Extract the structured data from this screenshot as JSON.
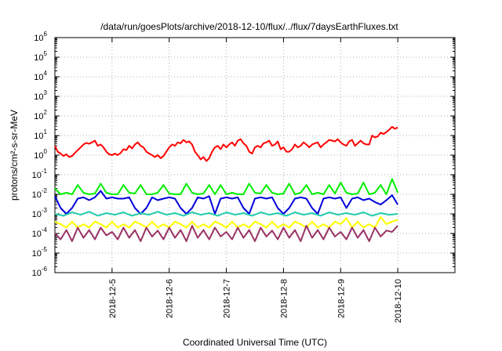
{
  "chart_data": {
    "type": "line",
    "title": "/data/run/goesPlots/archive/2018-12-10/flux/../flux/7daysEarthFluxes.txt",
    "xlabel": "Coordinated Universal Time (UTC)",
    "ylabel": "protons/cm²-s-sr-MeV",
    "y_scale": "log",
    "ylim_exponents": [
      -6,
      6
    ],
    "y_ticks": [
      {
        "base": "10",
        "exp": "-6"
      },
      {
        "base": "10",
        "exp": "-5"
      },
      {
        "base": "10",
        "exp": "-4"
      },
      {
        "base": "10",
        "exp": "-3"
      },
      {
        "base": "10",
        "exp": "-2"
      },
      {
        "base": "10",
        "exp": "-1"
      },
      {
        "base": "10",
        "exp": "0"
      },
      {
        "base": "10",
        "exp": "1"
      },
      {
        "base": "10",
        "exp": "2"
      },
      {
        "base": "10",
        "exp": "3"
      },
      {
        "base": "10",
        "exp": "4"
      },
      {
        "base": "10",
        "exp": "5"
      },
      {
        "base": "10",
        "exp": "6"
      }
    ],
    "x_range_days": [
      "2018-12-04",
      "2018-12-11"
    ],
    "x_ticks": [
      "2018-12-5",
      "2018-12-6",
      "2018-12-7",
      "2018-12-8",
      "2018-12-9",
      "2018-12-10"
    ],
    "grid": true,
    "legend": "none",
    "series": [
      {
        "color": "#ff0000",
        "x_days": [
          0.0,
          0.05,
          0.1,
          0.15,
          0.2,
          0.25,
          0.3,
          0.35,
          0.4,
          0.45,
          0.5,
          0.55,
          0.6,
          0.65,
          0.7,
          0.75,
          0.8,
          0.85,
          0.9,
          0.95,
          1.0,
          1.05,
          1.1,
          1.15,
          1.2,
          1.25,
          1.3,
          1.35,
          1.4,
          1.45,
          1.5,
          1.55,
          1.6,
          1.65,
          1.7,
          1.75,
          1.8,
          1.85,
          1.9,
          1.95,
          2.0,
          2.05,
          2.1,
          2.15,
          2.2,
          2.25,
          2.3,
          2.35,
          2.4,
          2.45,
          2.5,
          2.55,
          2.6,
          2.65,
          2.7,
          2.75,
          2.8,
          2.85,
          2.9,
          2.95,
          3.0,
          3.05,
          3.1,
          3.15,
          3.2,
          3.25,
          3.3,
          3.35,
          3.4,
          3.45,
          3.5,
          3.55,
          3.6,
          3.65,
          3.7,
          3.75,
          3.8,
          3.85,
          3.9,
          3.95,
          4.0,
          4.05,
          4.1,
          4.15,
          4.2,
          4.25,
          4.3,
          4.35,
          4.4,
          4.45,
          4.5,
          4.55,
          4.6,
          4.65,
          4.7,
          4.75,
          4.8,
          4.85,
          4.9,
          4.95,
          5.0,
          5.05,
          5.1,
          5.15,
          5.2,
          5.25,
          5.3,
          5.35,
          5.4,
          5.45,
          5.5,
          5.55,
          5.6,
          5.65,
          5.7,
          5.75,
          5.8,
          5.85,
          5.9,
          5.95,
          6.0
        ],
        "y": [
          3.0,
          1.5,
          1.2,
          0.9,
          1.1,
          0.8,
          0.9,
          1.3,
          1.8,
          2.5,
          3.5,
          4.2,
          3.8,
          4.5,
          5.5,
          3.0,
          3.5,
          2.5,
          1.5,
          1.1,
          1.0,
          1.2,
          1.0,
          1.3,
          2.0,
          1.8,
          3.0,
          2.2,
          3.5,
          4.5,
          3.0,
          2.5,
          1.5,
          1.2,
          1.0,
          0.8,
          1.0,
          0.7,
          0.9,
          1.5,
          2.5,
          3.5,
          3.0,
          4.5,
          4.0,
          6.0,
          4.5,
          5.0,
          3.5,
          1.5,
          1.0,
          0.6,
          0.8,
          0.5,
          0.7,
          1.5,
          2.5,
          3.0,
          2.0,
          3.5,
          2.5,
          3.5,
          4.5,
          3.0,
          5.5,
          6.5,
          4.0,
          3.0,
          1.5,
          1.2,
          2.5,
          3.0,
          2.5,
          4.0,
          4.5,
          5.5,
          3.0,
          3.5,
          5.0,
          2.0,
          2.5,
          1.5,
          1.5,
          2.0,
          3.5,
          2.5,
          3.0,
          4.5,
          3.5,
          2.5,
          3.5,
          4.0,
          4.5,
          2.5,
          3.5,
          4.5,
          6.0,
          5.5,
          5.0,
          6.5,
          4.5,
          3.5,
          3.0,
          5.0,
          6.0,
          3.0,
          4.0,
          5.5,
          4.0,
          3.5,
          3.5,
          10.0,
          8.0,
          9.0,
          14.0,
          12.0,
          15.0,
          20.0,
          28.0,
          22.0,
          26.0
        ]
      },
      {
        "color": "#00ee00",
        "x_days": [
          0.0,
          0.1,
          0.2,
          0.3,
          0.4,
          0.5,
          0.6,
          0.7,
          0.8,
          0.9,
          1.0,
          1.1,
          1.2,
          1.3,
          1.4,
          1.5,
          1.6,
          1.7,
          1.8,
          1.9,
          2.0,
          2.1,
          2.2,
          2.3,
          2.4,
          2.5,
          2.6,
          2.7,
          2.8,
          2.9,
          3.0,
          3.1,
          3.2,
          3.3,
          3.4,
          3.5,
          3.6,
          3.7,
          3.8,
          3.9,
          4.0,
          4.1,
          4.2,
          4.3,
          4.4,
          4.5,
          4.6,
          4.7,
          4.8,
          4.9,
          5.0,
          5.1,
          5.2,
          5.3,
          5.4,
          5.5,
          5.6,
          5.7,
          5.8,
          5.9,
          6.0
        ],
        "y": [
          0.02,
          0.01,
          0.012,
          0.01,
          0.03,
          0.012,
          0.01,
          0.011,
          0.035,
          0.012,
          0.01,
          0.01,
          0.03,
          0.012,
          0.011,
          0.03,
          0.01,
          0.01,
          0.012,
          0.03,
          0.011,
          0.01,
          0.01,
          0.035,
          0.012,
          0.01,
          0.011,
          0.03,
          0.01,
          0.03,
          0.01,
          0.012,
          0.01,
          0.01,
          0.035,
          0.012,
          0.011,
          0.03,
          0.012,
          0.01,
          0.011,
          0.035,
          0.01,
          0.012,
          0.03,
          0.01,
          0.012,
          0.01,
          0.03,
          0.011,
          0.04,
          0.012,
          0.01,
          0.011,
          0.04,
          0.01,
          0.012,
          0.03,
          0.01,
          0.06,
          0.012
        ]
      },
      {
        "color": "#0000dd",
        "x_days": [
          0.0,
          0.1,
          0.2,
          0.3,
          0.4,
          0.5,
          0.6,
          0.7,
          0.8,
          0.9,
          1.0,
          1.1,
          1.2,
          1.3,
          1.4,
          1.5,
          1.6,
          1.7,
          1.8,
          1.9,
          2.0,
          2.1,
          2.2,
          2.3,
          2.4,
          2.5,
          2.6,
          2.7,
          2.8,
          2.9,
          3.0,
          3.1,
          3.2,
          3.3,
          3.4,
          3.5,
          3.6,
          3.7,
          3.8,
          3.9,
          4.0,
          4.1,
          4.2,
          4.3,
          4.4,
          4.5,
          4.6,
          4.7,
          4.8,
          4.9,
          5.0,
          5.1,
          5.2,
          5.3,
          5.4,
          5.5,
          5.6,
          5.7,
          5.8,
          5.9,
          6.0
        ],
        "y": [
          0.008,
          0.002,
          0.001,
          0.002,
          0.006,
          0.007,
          0.005,
          0.007,
          0.015,
          0.006,
          0.007,
          0.006,
          0.006,
          0.007,
          0.002,
          0.001,
          0.002,
          0.007,
          0.005,
          0.006,
          0.007,
          0.006,
          0.002,
          0.001,
          0.002,
          0.007,
          0.006,
          0.008,
          0.001,
          0.006,
          0.007,
          0.006,
          0.007,
          0.002,
          0.001,
          0.006,
          0.007,
          0.006,
          0.007,
          0.002,
          0.001,
          0.002,
          0.006,
          0.007,
          0.006,
          0.002,
          0.001,
          0.006,
          0.007,
          0.006,
          0.007,
          0.002,
          0.006,
          0.007,
          0.005,
          0.006,
          0.004,
          0.003,
          0.005,
          0.009,
          0.003
        ]
      },
      {
        "color": "#22ccaa",
        "x_days": [
          0.0,
          0.15,
          0.3,
          0.45,
          0.6,
          0.75,
          0.9,
          1.05,
          1.2,
          1.35,
          1.5,
          1.65,
          1.8,
          1.95,
          2.1,
          2.25,
          2.4,
          2.55,
          2.7,
          2.85,
          3.0,
          3.15,
          3.3,
          3.45,
          3.6,
          3.75,
          3.9,
          4.05,
          4.2,
          4.35,
          4.5,
          4.65,
          4.8,
          4.95,
          5.1,
          5.25,
          5.4,
          5.55,
          5.7,
          5.85,
          6.0
        ],
        "y": [
          0.001,
          0.0008,
          0.0012,
          0.0009,
          0.0013,
          0.0008,
          0.0011,
          0.0009,
          0.0012,
          0.0008,
          0.0011,
          0.0009,
          0.0013,
          0.0009,
          0.0011,
          0.0008,
          0.0012,
          0.0009,
          0.0011,
          0.0008,
          0.0012,
          0.0009,
          0.0011,
          0.0008,
          0.0012,
          0.0009,
          0.0011,
          0.0008,
          0.0012,
          0.0009,
          0.0011,
          0.0008,
          0.0012,
          0.0009,
          0.0011,
          0.0009,
          0.0012,
          0.0008,
          0.0011,
          0.0009,
          0.001
        ]
      },
      {
        "color": "#ffff00",
        "x_days": [
          0.0,
          0.1,
          0.2,
          0.3,
          0.4,
          0.5,
          0.6,
          0.7,
          0.8,
          0.9,
          1.0,
          1.1,
          1.2,
          1.3,
          1.4,
          1.5,
          1.6,
          1.7,
          1.8,
          1.9,
          2.0,
          2.1,
          2.2,
          2.3,
          2.4,
          2.5,
          2.6,
          2.7,
          2.8,
          2.9,
          3.0,
          3.1,
          3.2,
          3.3,
          3.4,
          3.5,
          3.6,
          3.7,
          3.8,
          3.9,
          4.0,
          4.1,
          4.2,
          4.3,
          4.4,
          4.5,
          4.6,
          4.7,
          4.8,
          4.9,
          5.0,
          5.1,
          5.2,
          5.3,
          5.4,
          5.5,
          5.6,
          5.7,
          5.8,
          5.9,
          6.0
        ],
        "y": [
          0.0004,
          0.0003,
          0.0002,
          0.0004,
          0.0002,
          0.0003,
          0.0002,
          0.0004,
          0.0003,
          0.0002,
          0.0004,
          0.0002,
          0.0003,
          0.0002,
          0.0004,
          0.0003,
          0.0002,
          0.0004,
          0.0002,
          0.0003,
          0.0002,
          0.0004,
          0.0003,
          0.0002,
          0.0004,
          0.0002,
          0.0003,
          0.0002,
          0.0004,
          0.0003,
          0.0002,
          0.0004,
          0.0002,
          0.0003,
          0.0002,
          0.0004,
          0.0003,
          0.0002,
          0.0004,
          0.0002,
          0.0003,
          0.0002,
          0.0004,
          0.0003,
          0.0002,
          0.0004,
          0.0002,
          0.0003,
          0.0002,
          0.0004,
          0.0003,
          0.0006,
          0.0002,
          0.0004,
          0.0002,
          0.0003,
          0.0002,
          0.0007,
          0.0003,
          0.0004,
          0.0005
        ]
      },
      {
        "color": "#993366",
        "x_days": [
          0.0,
          0.1,
          0.2,
          0.3,
          0.4,
          0.5,
          0.6,
          0.7,
          0.8,
          0.9,
          1.0,
          1.1,
          1.2,
          1.3,
          1.4,
          1.5,
          1.6,
          1.7,
          1.8,
          1.9,
          2.0,
          2.1,
          2.2,
          2.3,
          2.4,
          2.5,
          2.6,
          2.7,
          2.8,
          2.9,
          3.0,
          3.1,
          3.2,
          3.3,
          3.4,
          3.5,
          3.6,
          3.7,
          3.8,
          3.9,
          4.0,
          4.1,
          4.2,
          4.3,
          4.4,
          4.5,
          4.6,
          4.7,
          4.8,
          4.9,
          5.0,
          5.1,
          5.2,
          5.3,
          5.4,
          5.5,
          5.6,
          5.7,
          5.8,
          5.9,
          6.0
        ],
        "y": [
          0.0001,
          5e-05,
          0.00015,
          4e-05,
          0.0002,
          6e-05,
          0.00015,
          5e-05,
          0.0002,
          8e-05,
          0.00012,
          5e-05,
          0.0002,
          6e-05,
          0.00015,
          4e-05,
          0.0002,
          7e-05,
          0.00014,
          5e-05,
          0.0002,
          6e-05,
          0.00015,
          4e-05,
          0.00025,
          6e-05,
          0.00015,
          5e-05,
          0.0002,
          7e-05,
          0.00012,
          5e-05,
          0.0002,
          6e-05,
          0.00015,
          4e-05,
          0.0002,
          7e-05,
          0.00014,
          5e-05,
          0.0002,
          6e-05,
          0.00015,
          4e-05,
          0.00025,
          6e-05,
          0.00015,
          5e-05,
          0.0002,
          7e-05,
          0.00012,
          5e-05,
          0.0002,
          6e-05,
          0.00015,
          4e-05,
          0.0002,
          7e-05,
          0.00014,
          0.00012,
          0.00025
        ]
      }
    ]
  }
}
